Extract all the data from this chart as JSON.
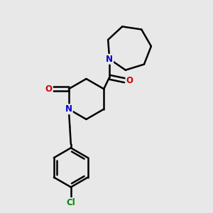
{
  "bg_color": "#e8e8e8",
  "bond_color": "#000000",
  "N_color": "#0000cc",
  "O_color": "#cc0000",
  "Cl_color": "#008800",
  "line_width": 1.8,
  "figsize": [
    3.0,
    3.0
  ],
  "dpi": 100,
  "xlim": [
    0,
    10
  ],
  "ylim": [
    0,
    10
  ]
}
